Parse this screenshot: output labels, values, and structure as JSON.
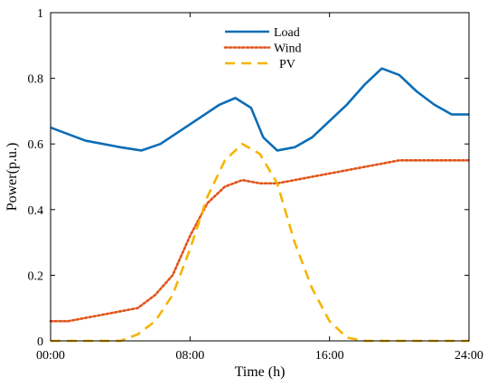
{
  "chart_data": {
    "type": "line",
    "xlabel": "Time (h)",
    "ylabel": "Power(p.u.)",
    "xlim": [
      0,
      24
    ],
    "ylim": [
      0,
      1
    ],
    "x_ticks": [
      0,
      8,
      16,
      24
    ],
    "x_tick_labels": [
      "00:00",
      "08:00",
      "16:00",
      "24:00"
    ],
    "y_ticks": [
      0,
      0.2,
      0.4,
      0.6,
      0.8,
      1
    ],
    "y_tick_labels": [
      "0",
      "0.2",
      "0.4",
      "0.6",
      "0.8",
      "1"
    ],
    "grid": false,
    "legend_position": "top-center",
    "x": [
      0,
      1,
      2,
      3,
      4,
      5,
      6,
      7,
      8,
      9,
      10,
      11,
      12,
      13,
      14,
      15,
      16,
      17,
      18,
      19,
      20,
      21,
      22,
      23,
      24
    ],
    "series": [
      {
        "name": "Load",
        "color": "#0b6db7",
        "style": "solid",
        "x": [
          0,
          2,
          4,
          5.2,
          6.3,
          8,
          9.7,
          10.6,
          11.5,
          12.2,
          13,
          14,
          15,
          16,
          17,
          18,
          19,
          20,
          21,
          22,
          23,
          24
        ],
        "values": [
          0.65,
          0.61,
          0.59,
          0.58,
          0.6,
          0.66,
          0.72,
          0.74,
          0.71,
          0.62,
          0.58,
          0.59,
          0.62,
          0.67,
          0.72,
          0.78,
          0.83,
          0.81,
          0.76,
          0.72,
          0.69,
          0.69
        ]
      },
      {
        "name": "Wind",
        "color": "#e1541a",
        "style": "dotted",
        "x": [
          0,
          1,
          2,
          3,
          4,
          5,
          6,
          7,
          8,
          9,
          10,
          11,
          12,
          13,
          14,
          15,
          16,
          17,
          18,
          19,
          20,
          21,
          22,
          23,
          24
        ],
        "values": [
          0.06,
          0.06,
          0.07,
          0.08,
          0.09,
          0.1,
          0.14,
          0.2,
          0.32,
          0.42,
          0.47,
          0.49,
          0.48,
          0.48,
          0.49,
          0.5,
          0.51,
          0.52,
          0.53,
          0.54,
          0.55,
          0.55,
          0.55,
          0.55,
          0.55
        ]
      },
      {
        "name": "PV",
        "color": "#f6b400",
        "style": "dashed",
        "x": [
          0,
          1,
          2,
          3,
          4,
          5,
          6,
          7,
          8,
          9,
          10,
          11,
          12,
          13,
          14,
          15,
          16,
          17,
          18,
          19,
          20,
          21,
          22,
          23,
          24
        ],
        "values": [
          0,
          0,
          0,
          0,
          0,
          0.02,
          0.06,
          0.14,
          0.28,
          0.44,
          0.55,
          0.6,
          0.57,
          0.48,
          0.3,
          0.16,
          0.06,
          0.01,
          0,
          0,
          0,
          0,
          0,
          0,
          0
        ]
      }
    ]
  }
}
